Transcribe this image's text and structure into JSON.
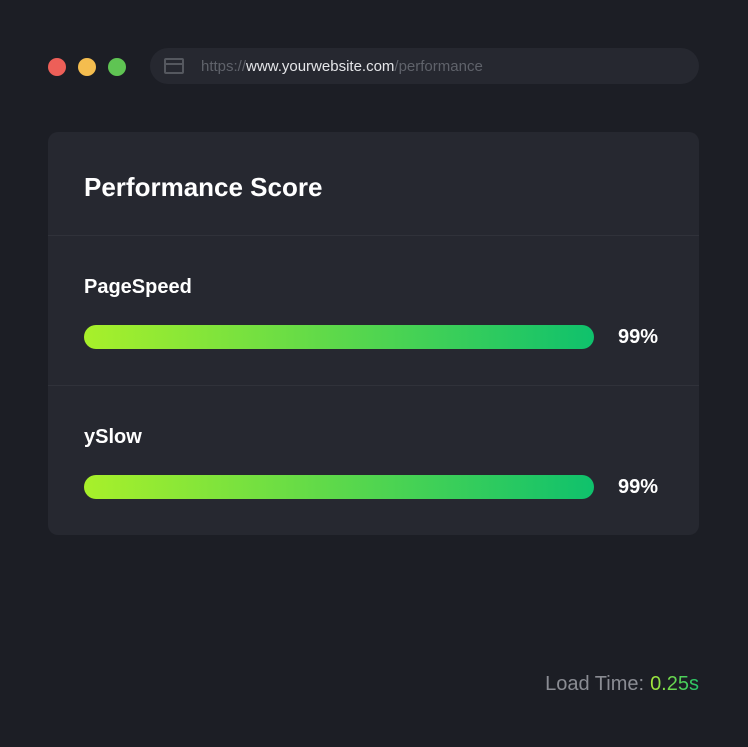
{
  "window": {
    "controls": [
      {
        "name": "close",
        "color": "#ed5f58"
      },
      {
        "name": "minimize",
        "color": "#f4bd4f"
      },
      {
        "name": "maximize",
        "color": "#5fc453"
      }
    ]
  },
  "url": {
    "scheme": "https://",
    "host": "www.yourwebsite.com",
    "path": "/performance"
  },
  "card": {
    "title": "Performance Score",
    "metrics": [
      {
        "label": "PageSpeed",
        "value": 99,
        "value_label": "99%"
      },
      {
        "label": "ySlow",
        "value": 99,
        "value_label": "99%"
      }
    ]
  },
  "footer": {
    "load_label": "Load Time:",
    "load_value": "0.25s"
  },
  "colors": {
    "bar_start": "#a8f02a",
    "bar_end": "#0fc16c"
  }
}
